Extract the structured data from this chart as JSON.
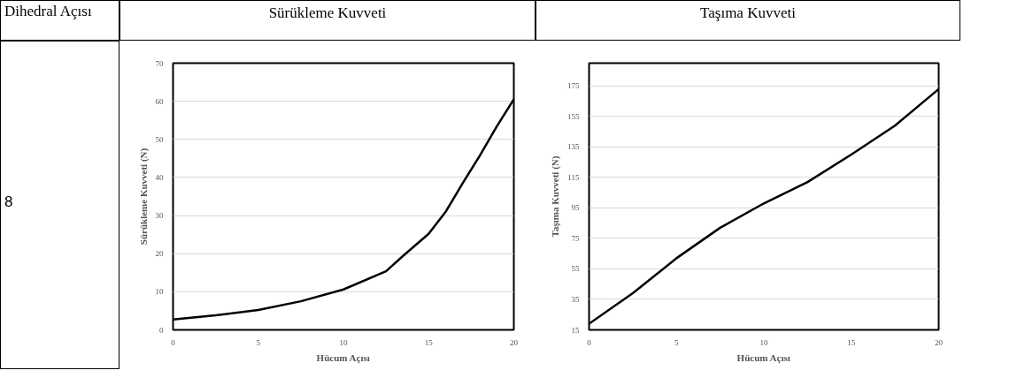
{
  "chart_data": [
    {
      "type": "line",
      "title": "Sürükleme Kuvveti",
      "xlabel": "Hücum Açısı",
      "ylabel": "Sürükleme Kuvveti (N)",
      "annotations": [
        "Dihedral Açısı",
        "8"
      ],
      "x": [
        0,
        2.5,
        5,
        7.5,
        10,
        12.5,
        13.5,
        15,
        16,
        17,
        18,
        19,
        20
      ],
      "series": [
        {
          "color": "#000000",
          "values": [
            2.7,
            3.8,
            5.2,
            7.5,
            10.6,
            15.4,
            19.4,
            25.2,
            31,
            38.5,
            45.7,
            53.4,
            60.5
          ]
        }
      ],
      "xlim": [
        0,
        20
      ],
      "xticks": [
        0,
        5,
        10,
        15,
        20
      ],
      "ylim": [
        0,
        70
      ],
      "yticks": [
        0,
        10,
        20,
        30,
        40,
        50,
        60,
        70
      ],
      "grid": "y",
      "marker": "none",
      "line_style": "solid"
    },
    {
      "type": "line",
      "title": "Taşıma Kuvveti",
      "xlabel": "Hücum Açısı",
      "ylabel": "Taşıma Kuvveti (N)",
      "x": [
        0,
        2.5,
        5,
        7.5,
        10,
        12.5,
        15,
        17.5,
        20
      ],
      "series": [
        {
          "color": "#000000",
          "values": [
            19,
            39,
            62,
            82,
            98,
            112,
            130,
            149,
            173
          ]
        }
      ],
      "xlim": [
        0,
        20
      ],
      "xticks": [
        0,
        5,
        10,
        15,
        20
      ],
      "ylim": [
        15,
        190
      ],
      "yticks": [
        15,
        35,
        55,
        75,
        95,
        115,
        135,
        155,
        175
      ],
      "grid": "y",
      "marker": "none",
      "line_style": "solid"
    }
  ]
}
